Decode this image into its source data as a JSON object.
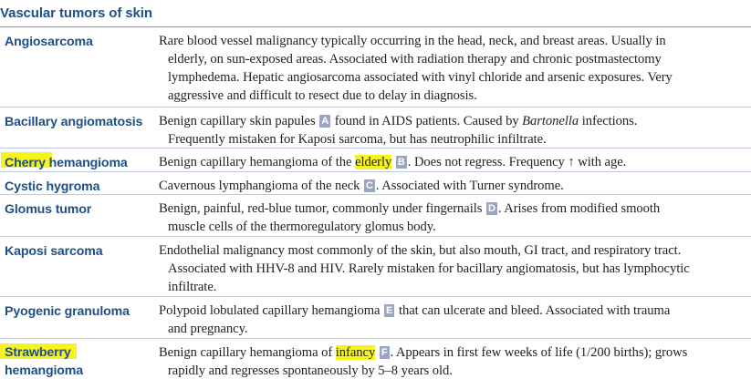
{
  "title": "Vascular tumors of skin",
  "rows": [
    {
      "term": "Angiosarcoma",
      "lines": [
        "Rare blood vessel malignancy typically occurring in the head, neck, and breast areas. Usually in",
        "elderly, on sun-exposed areas. Associated with radiation therapy and chronic postmastectomy",
        "lymphedema. Hepatic angiosarcoma associated with vinyl chloride and arsenic exposures. Very",
        "aggressive and difficult to resect due to delay in diagnosis."
      ]
    },
    {
      "term": "Bacillary angiomatosis",
      "l1_pre": "Benign capillary skin papules ",
      "badge": "A",
      "l1_post": " found in AIDS patients. Caused by ",
      "l1_italic": "Bartonella",
      "l1_end": " infections.",
      "l2": "Frequently mistaken for Kaposi sarcoma, but has neutrophilic infiltrate."
    },
    {
      "term_hl": "Cherry",
      "term_rest": " hemangioma",
      "pre": "Benign capillary hemangioma of the ",
      "hl": "elderly",
      "badge": "B",
      "post": ". Does not regress. Frequency ↑ with age."
    },
    {
      "term": "Cystic hygroma",
      "pre": "Cavernous lymphangioma of the neck ",
      "badge": "C",
      "post": ". Associated with Turner syndrome."
    },
    {
      "term": "Glomus tumor",
      "pre": "Benign, painful, red-blue tumor, commonly under fingernails ",
      "badge": "D",
      "post": ". Arises from modified smooth",
      "l2": "muscle cells of the thermoregulatory glomus body."
    },
    {
      "term": "Kaposi sarcoma",
      "lines": [
        "Endothelial malignancy most commonly of the skin, but also mouth, GI tract, and respiratory tract.",
        "Associated with HHV-8 and HIV. Rarely mistaken for bacillary angiomatosis, but has lymphocytic",
        "infiltrate."
      ]
    },
    {
      "term": "Pyogenic granuloma",
      "pre": "Polypoid lobulated capillary hemangioma ",
      "badge": "E",
      "post": " that can ulcerate and bleed. Associated with trauma",
      "l2": "and pregnancy."
    },
    {
      "term_hl": "Strawberry",
      "term_l2": "hemangioma",
      "pre": "Benign capillary hemangioma of ",
      "hl": "infancy",
      "badge": "F",
      "post": ". Appears in first few weeks of life (1/200 births); grows",
      "l2": "rapidly and regresses spontaneously by 5–8 years old."
    }
  ]
}
